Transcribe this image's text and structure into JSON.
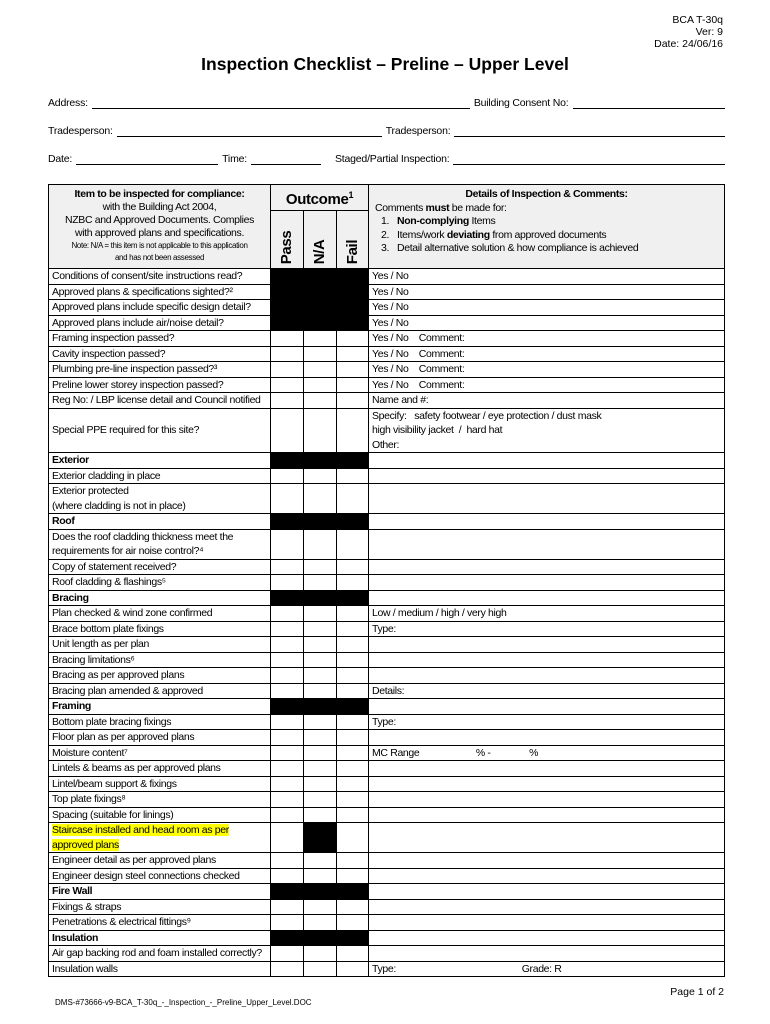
{
  "meta": {
    "form": "BCA T-30q",
    "version": "Ver: 9",
    "date": "Date: 24/06/16"
  },
  "title": "Inspection Checklist – Preline – Upper Level",
  "fields": {
    "address": "Address:",
    "consent": "Building Consent No:",
    "tradesperson1": "Tradesperson:",
    "tradesperson2": "Tradesperson:",
    "date": "Date:",
    "time": "Time:",
    "staged": "Staged/Partial Inspection:"
  },
  "table_header": {
    "item_title": "Item to be inspected for compliance:",
    "item_l1": "with the Building Act 2004,",
    "item_l2": "NZBC and Approved Documents. Complies",
    "item_l3": "with approved plans and specifications.",
    "item_note1": "Note: N/A = this item is not applicable to this application",
    "item_note2": "and has not been assessed",
    "outcome": "Outcome",
    "outcome_sup": "1",
    "pass": "Pass",
    "na": "N/A",
    "fail": "Fail",
    "details_title": "Details of Inspection & Comments:",
    "details_pre": "Comments ",
    "details_must": "must",
    "details_post": " be made for:",
    "details_items": [
      {
        "n": "1.",
        "bold": "Non-complying",
        "text": " Items"
      },
      {
        "n": "2.",
        "pre": "Items/work ",
        "bold": "deviating",
        "text": " from approved documents"
      },
      {
        "n": "3.",
        "text": "Detail alternative solution & how compliance is achieved"
      }
    ]
  },
  "rows": [
    {
      "item": "Conditions of consent/site instructions read?",
      "comment": "Yes / No",
      "black": "all"
    },
    {
      "item": "Approved plans & specifications sighted?²",
      "comment": "Yes / No",
      "black": "all"
    },
    {
      "item": "Approved plans include specific design detail?",
      "comment": "Yes / No",
      "black": "all"
    },
    {
      "item": "Approved plans include air/noise detail?",
      "comment": "Yes / No",
      "black": "all"
    },
    {
      "item": "Framing inspection passed?",
      "comment": "Yes / No    Comment:"
    },
    {
      "item": "Cavity inspection passed?",
      "comment": "Yes / No    Comment:"
    },
    {
      "item": "Plumbing pre-line inspection passed?³",
      "comment": "Yes / No    Comment:"
    },
    {
      "item": "Preline lower storey inspection passed?",
      "comment": "Yes / No    Comment:"
    },
    {
      "item": "Reg No: / LBP license detail and Council notified",
      "comment": "Name and #:"
    },
    {
      "item": "Special PPE required for this site?",
      "comment": "Specify:   safety footwear / eye protection / dust mask\nhigh visibility jacket  /  hard hat\nOther:",
      "middle": true
    },
    {
      "item": "Exterior",
      "section": true,
      "black": "all"
    },
    {
      "item": "Exterior cladding in place"
    },
    {
      "item": "Exterior protected\n(where cladding is not in place)"
    },
    {
      "item": "Roof",
      "section": true,
      "black": "all"
    },
    {
      "item": "Does the roof cladding thickness meet the requirements for air noise control?⁴"
    },
    {
      "item": "Copy of statement received?"
    },
    {
      "item": "Roof cladding & flashings⁵"
    },
    {
      "item": "Bracing",
      "section": true,
      "black": "all"
    },
    {
      "item": "Plan checked & wind zone confirmed",
      "comment": "Low / medium / high / very high"
    },
    {
      "item": "Brace bottom plate fixings",
      "comment": "Type:"
    },
    {
      "item": "Unit length as per plan"
    },
    {
      "item": "Bracing limitations⁶"
    },
    {
      "item": "Bracing as per approved plans"
    },
    {
      "item": "Bracing plan amended & approved",
      "comment": "Details:"
    },
    {
      "item": "Framing",
      "section": true,
      "black": "all"
    },
    {
      "item": "Bottom plate bracing fixings",
      "comment": "Type:"
    },
    {
      "item": "Floor plan as per approved plans"
    },
    {
      "item": "Moisture content⁷",
      "comment": "MC Range                      % -               %"
    },
    {
      "item": "Lintels & beams as per approved plans"
    },
    {
      "item": "Lintel/beam support & fixings"
    },
    {
      "item": "Top plate fixings⁸"
    },
    {
      "item": "Spacing (suitable for linings)"
    },
    {
      "item": "Staircase installed and head room as per approved plans",
      "highlight": true,
      "black": "na"
    },
    {
      "item": "Engineer detail as per approved plans"
    },
    {
      "item": "Engineer design steel connections checked"
    },
    {
      "item": "Fire Wall",
      "section": true,
      "black": "all"
    },
    {
      "item": "Fixings & straps"
    },
    {
      "item": "Penetrations & electrical fittings⁹"
    },
    {
      "item": "Insulation",
      "section": true,
      "black": "all"
    },
    {
      "item": "Air gap backing rod and foam installed correctly?"
    },
    {
      "item": "Insulation walls",
      "comment": "Type:                                                 Grade: R"
    }
  ],
  "footer": {
    "page": "Page 1 of 2",
    "doc": "DMS-#73666-v9-BCA_T-30q_-_Inspection_-_Preline_Upper_Level.DOC"
  }
}
